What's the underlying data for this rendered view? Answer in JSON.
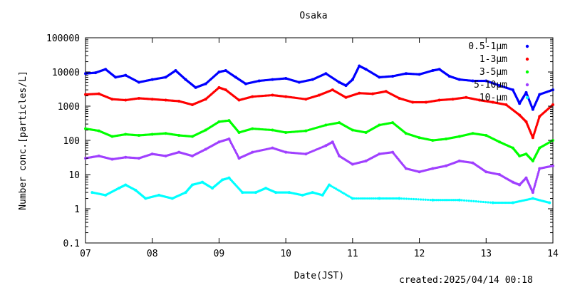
{
  "chart_data": {
    "type": "scatter",
    "title": "Osaka",
    "xlabel": "Date(JST)",
    "ylabel": "Number conc.[particles/L]",
    "yscale": "log",
    "ylim": [
      0.1,
      100000
    ],
    "xlim": [
      7,
      14
    ],
    "x_ticks": [
      "07",
      "08",
      "09",
      "10",
      "11",
      "12",
      "13",
      "14"
    ],
    "y_ticks": [
      "0.1",
      "1",
      "10",
      "100",
      "1000",
      "10000",
      "100000"
    ],
    "legend_placement": "top-right",
    "footer": "created:2025/04/14 00:18",
    "series": [
      {
        "name": "0.5-1μm",
        "color": "#0000ff",
        "x": [
          7.0,
          7.15,
          7.3,
          7.45,
          7.6,
          7.8,
          8.0,
          8.2,
          8.35,
          8.5,
          8.65,
          8.8,
          9.0,
          9.1,
          9.25,
          9.4,
          9.6,
          9.8,
          10.0,
          10.2,
          10.4,
          10.6,
          10.8,
          10.9,
          11.0,
          11.1,
          11.2,
          11.4,
          11.6,
          11.8,
          12.0,
          12.2,
          12.3,
          12.45,
          12.6,
          12.8,
          13.0,
          13.2,
          13.4,
          13.5,
          13.6,
          13.7,
          13.8,
          14.0
        ],
        "y": [
          9000,
          9500,
          12000,
          7000,
          8000,
          5000,
          6000,
          7000,
          11000,
          6000,
          3500,
          4500,
          10000,
          11000,
          7000,
          4500,
          5500,
          6000,
          6500,
          5000,
          6000,
          9000,
          5000,
          4000,
          6000,
          15000,
          12000,
          7000,
          7500,
          9000,
          8500,
          11000,
          12000,
          7500,
          6000,
          5500,
          5500,
          4000,
          3000,
          1200,
          2500,
          800,
          2200,
          3000
        ]
      },
      {
        "name": "1-3μm",
        "color": "#ff0000",
        "x": [
          7.0,
          7.2,
          7.4,
          7.6,
          7.8,
          8.0,
          8.2,
          8.4,
          8.6,
          8.8,
          9.0,
          9.1,
          9.3,
          9.5,
          9.8,
          10.0,
          10.3,
          10.5,
          10.7,
          10.9,
          11.1,
          11.3,
          11.5,
          11.7,
          11.9,
          12.1,
          12.3,
          12.5,
          12.7,
          12.9,
          13.1,
          13.3,
          13.5,
          13.6,
          13.7,
          13.8,
          14.0
        ],
        "y": [
          2200,
          2300,
          1600,
          1500,
          1700,
          1600,
          1500,
          1400,
          1100,
          1600,
          3500,
          3000,
          1500,
          1900,
          2100,
          1900,
          1600,
          2100,
          3000,
          1800,
          2400,
          2300,
          2700,
          1700,
          1300,
          1300,
          1500,
          1600,
          1800,
          1500,
          1300,
          1100,
          550,
          350,
          120,
          500,
          1100
        ]
      },
      {
        "name": "3-5μm",
        "color": "#00ff00",
        "x": [
          7.0,
          7.2,
          7.4,
          7.6,
          7.8,
          8.0,
          8.2,
          8.4,
          8.6,
          8.8,
          9.0,
          9.15,
          9.3,
          9.5,
          9.8,
          10.0,
          10.3,
          10.6,
          10.8,
          11.0,
          11.2,
          11.4,
          11.6,
          11.8,
          12.0,
          12.2,
          12.4,
          12.6,
          12.8,
          13.0,
          13.2,
          13.4,
          13.5,
          13.6,
          13.7,
          13.8,
          14.0
        ],
        "y": [
          220,
          190,
          130,
          150,
          140,
          150,
          160,
          140,
          130,
          200,
          350,
          380,
          170,
          220,
          200,
          170,
          190,
          280,
          330,
          200,
          170,
          280,
          330,
          160,
          120,
          100,
          110,
          130,
          160,
          140,
          90,
          60,
          35,
          40,
          25,
          60,
          100
        ]
      },
      {
        "name": "5-10μm",
        "color": "#a040ff",
        "x": [
          7.0,
          7.2,
          7.4,
          7.6,
          7.8,
          8.0,
          8.2,
          8.4,
          8.6,
          8.8,
          9.0,
          9.15,
          9.3,
          9.5,
          9.8,
          10.0,
          10.3,
          10.6,
          10.7,
          10.8,
          11.0,
          11.2,
          11.4,
          11.6,
          11.8,
          12.0,
          12.2,
          12.4,
          12.6,
          12.8,
          13.0,
          13.2,
          13.4,
          13.5,
          13.6,
          13.7,
          13.8,
          14.0
        ],
        "y": [
          30,
          35,
          28,
          32,
          30,
          40,
          35,
          45,
          35,
          55,
          90,
          110,
          30,
          45,
          60,
          45,
          40,
          70,
          90,
          35,
          20,
          25,
          40,
          45,
          15,
          12,
          15,
          18,
          25,
          22,
          12,
          10,
          6,
          5,
          8,
          3,
          15,
          18
        ]
      },
      {
        "name": "10-μm",
        "color": "#00ffff",
        "x": [
          7.1,
          7.3,
          7.5,
          7.6,
          7.75,
          7.9,
          8.1,
          8.3,
          8.5,
          8.6,
          8.75,
          8.9,
          9.05,
          9.15,
          9.35,
          9.55,
          9.7,
          9.85,
          10.05,
          10.25,
          10.4,
          10.55,
          10.65,
          11.0,
          11.4,
          11.7,
          12.2,
          12.6,
          13.1,
          13.4,
          13.7,
          13.95
        ],
        "y": [
          3,
          2.5,
          4,
          5,
          3.5,
          2,
          2.5,
          2,
          3,
          5,
          6,
          4,
          7,
          8,
          3,
          3,
          4,
          3,
          3,
          2.5,
          3,
          2.5,
          5,
          2,
          2,
          2,
          1.8,
          1.8,
          1.5,
          1.5,
          2,
          1.5
        ]
      }
    ]
  }
}
